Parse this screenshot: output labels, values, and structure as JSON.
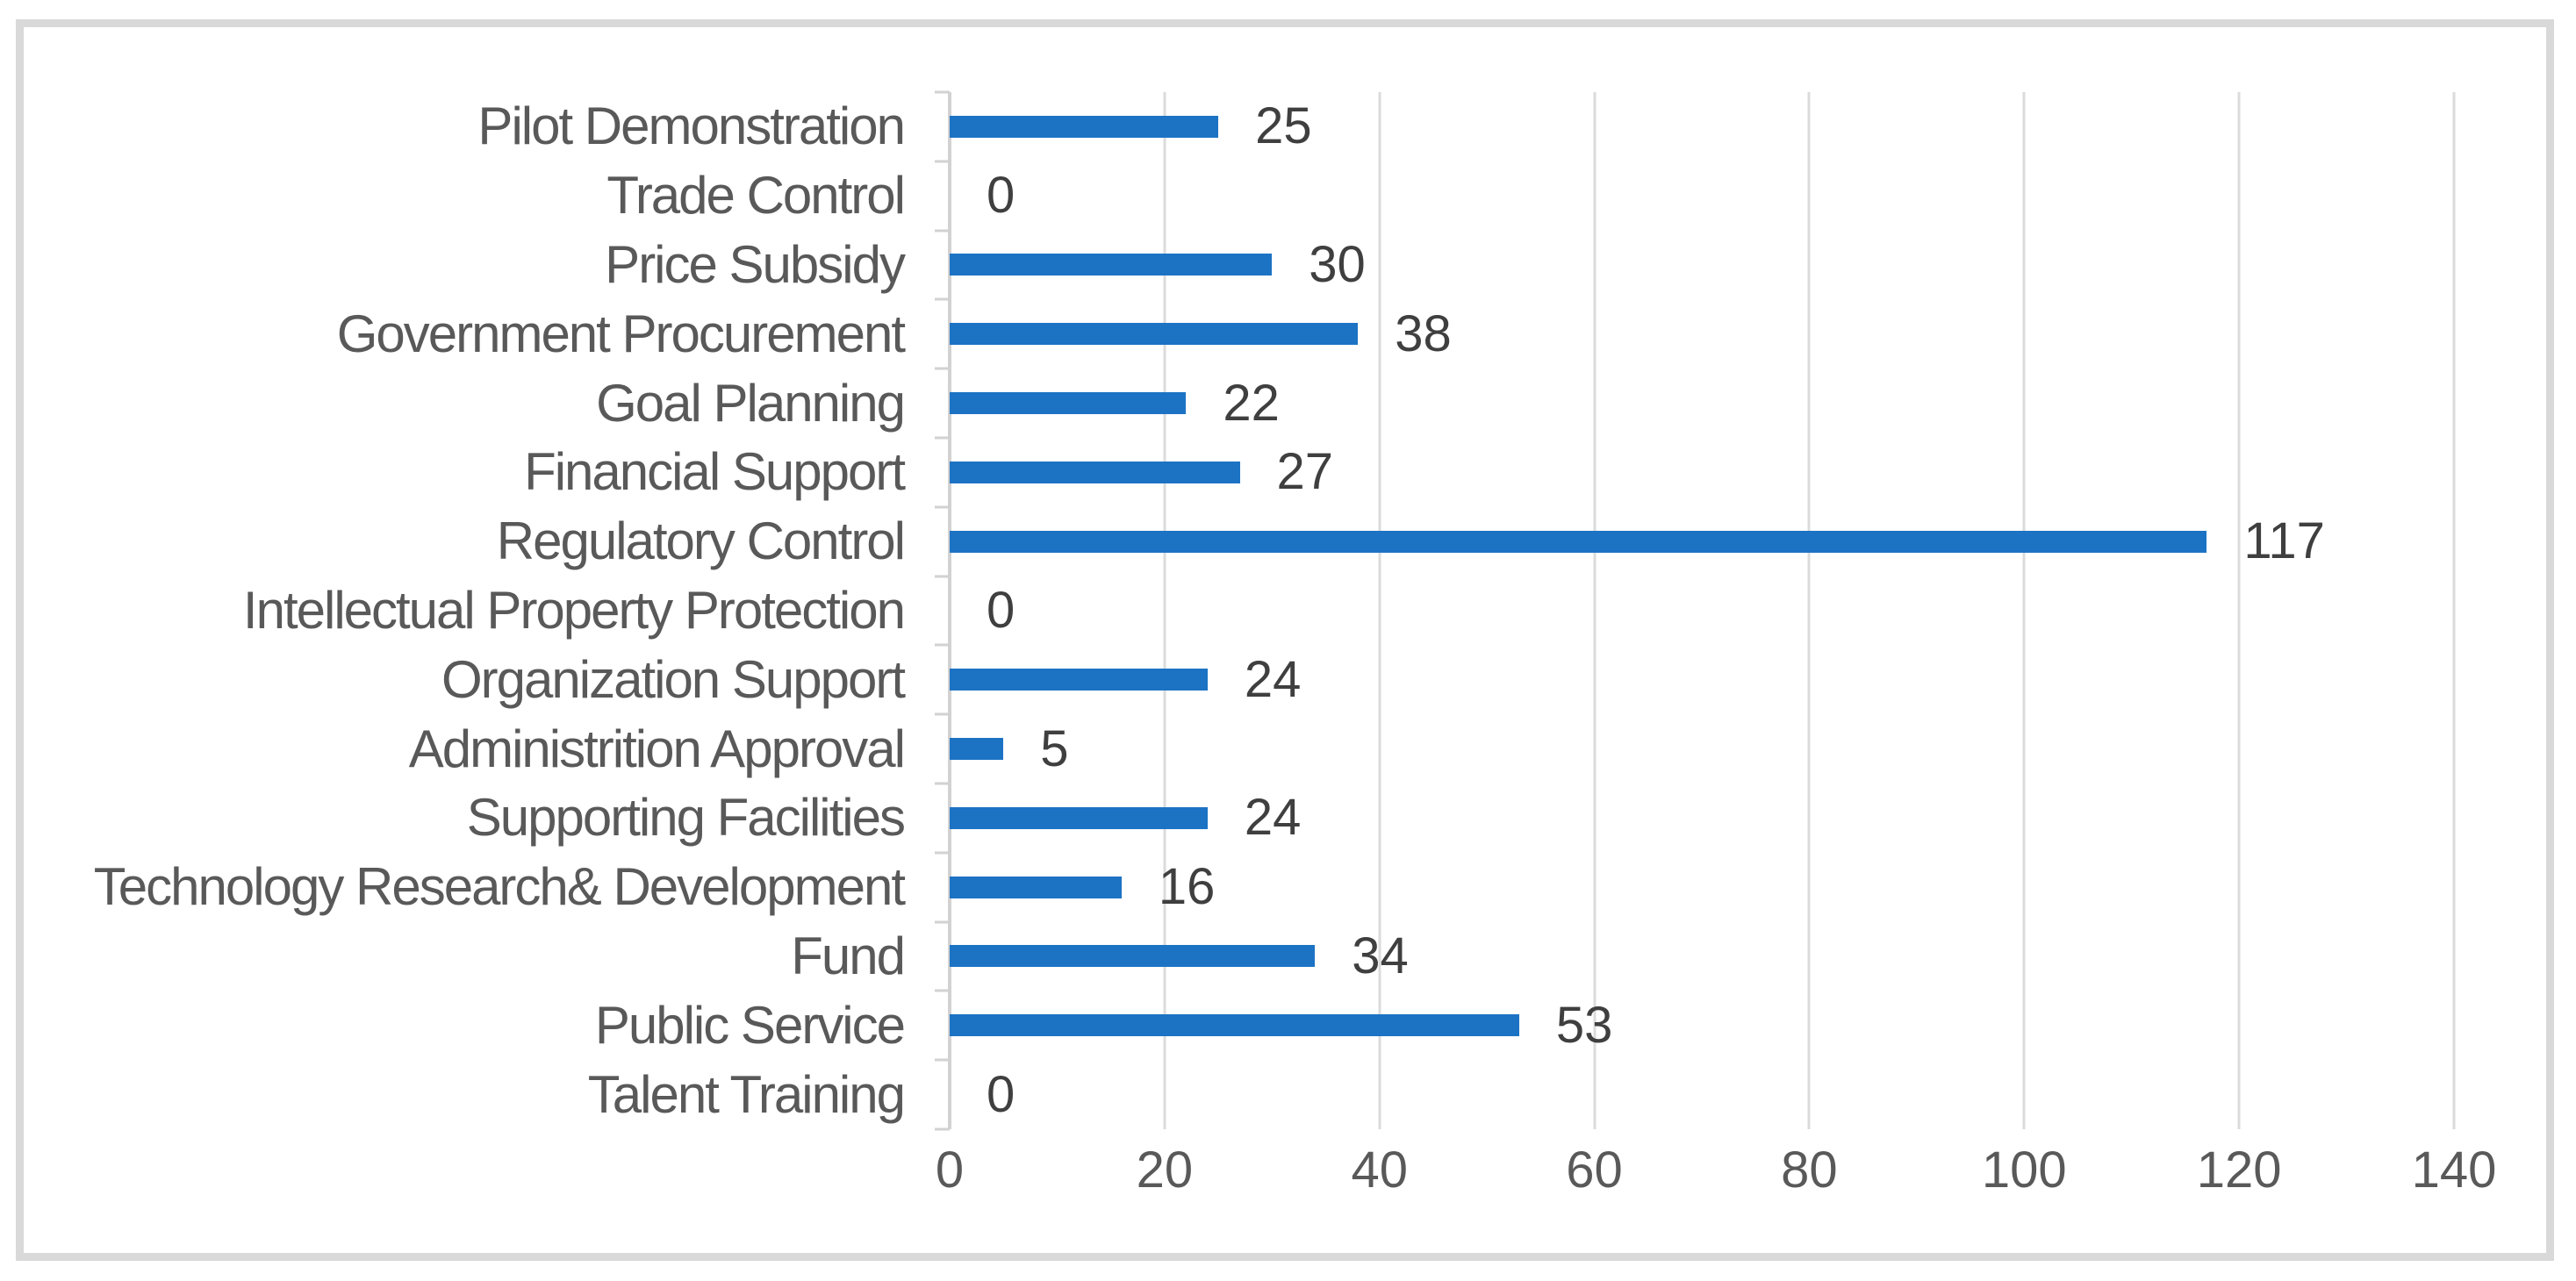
{
  "chart_data": {
    "type": "bar",
    "orientation": "horizontal",
    "title": "",
    "xlabel": "",
    "ylabel": "",
    "categories": [
      "Pilot Demonstration",
      "Trade Control",
      "Price Subsidy",
      "Government Procurement",
      "Goal Planning",
      "Financial Support",
      "Regulatory Control",
      "Intellectual Property Protection",
      "Organization Support",
      "Administrition Approval",
      "Supporting Facilities",
      "Technology Research& Development",
      "Fund",
      "Public Service",
      "Talent Training"
    ],
    "values": [
      25,
      0,
      30,
      38,
      22,
      27,
      117,
      0,
      24,
      5,
      24,
      16,
      34,
      53,
      0
    ],
    "data_labels_shown": true,
    "xlim": [
      0,
      140
    ],
    "x_ticks": [
      0,
      20,
      40,
      60,
      80,
      100,
      120,
      140
    ],
    "grid": "vertical",
    "legend": "none",
    "colors": {
      "bar": "#1C73C4",
      "gridline": "#DBDBDB",
      "axis_line": "#D2D2D2",
      "frame_border": "#D9D9D9",
      "category_text": "#595959",
      "tick_text": "#595959",
      "data_label_text": "#3F3F3F",
      "background": "#FFFFFF"
    }
  }
}
